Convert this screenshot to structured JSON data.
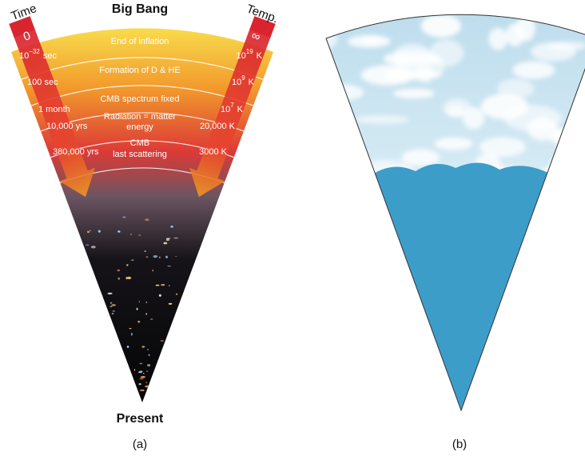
{
  "panel_a": {
    "top_label": "Big Bang",
    "bottom_label": "Present",
    "caption": "(a)",
    "time_axis": {
      "title": "Time",
      "start": "0",
      "labels": [
        {
          "main": "10",
          "sup": "−32",
          "unit": "sec"
        },
        {
          "main": "100 sec"
        },
        {
          "main": "1 month"
        },
        {
          "main": "10,000 yrs"
        },
        {
          "main": "380,000 yrs"
        }
      ]
    },
    "temp_axis": {
      "title": "Temp.",
      "start": "∞",
      "labels": [
        {
          "main": "10",
          "sup": "19",
          "unit": "K"
        },
        {
          "main": "10",
          "sup": "9",
          "unit": "K"
        },
        {
          "main": "10",
          "sup": "7",
          "unit": "K"
        },
        {
          "main": "20,000 K"
        },
        {
          "main": "3000 K"
        }
      ]
    },
    "events": [
      {
        "lines": [
          "End of inflation"
        ]
      },
      {
        "lines": [
          "Formation of D & HE"
        ]
      },
      {
        "lines": [
          "CMB spectrum fixed"
        ]
      },
      {
        "lines": [
          "Radiation = matter",
          "energy"
        ]
      },
      {
        "lines": [
          "CMB",
          "last scattering"
        ]
      }
    ]
  },
  "panel_b": {
    "caption": "(b)"
  }
}
